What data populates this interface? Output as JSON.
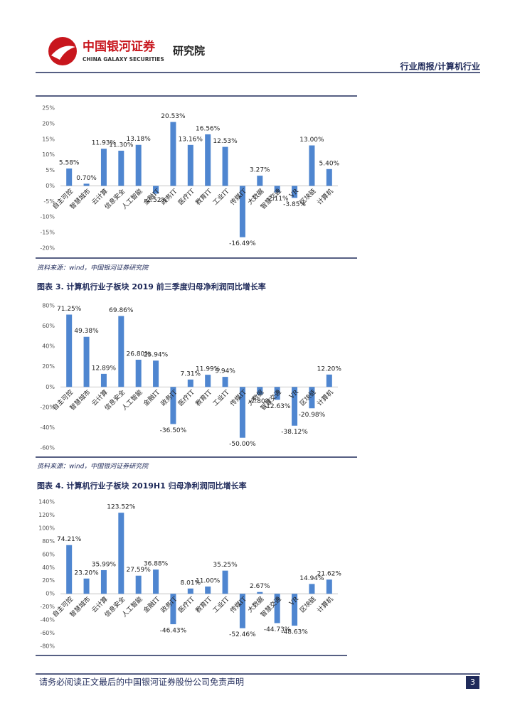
{
  "header": {
    "company": "中国银河证券",
    "company_en": "CHINA GALAXY SECURITIES",
    "institute": "研究院",
    "section": "行业周报/计算机行业"
  },
  "chart_data": [
    {
      "type": "bar",
      "categories": [
        "自主可控",
        "智慧城市",
        "云计算",
        "信息安全",
        "人工智能",
        "金融IT",
        "政务IT",
        "医疗IT",
        "教育IT",
        "工业IT",
        "传媒IT",
        "大数据",
        "智慧交通",
        "VR",
        "区块链",
        "计算机"
      ],
      "values": [
        5.58,
        0.7,
        11.93,
        11.3,
        13.18,
        -2.52,
        20.53,
        13.16,
        16.56,
        12.53,
        -16.49,
        3.27,
        -2.11,
        -3.85,
        13.0,
        5.4
      ],
      "value_labels": [
        "5.58%",
        "0.70%",
        "11.93%",
        "11.30%",
        "13.18%",
        "-2.52%",
        "20.53%",
        "13.16%",
        "16.56%",
        "12.53%",
        "-16.49%",
        "3.27%",
        "-2.11%",
        "-3.85%",
        "13.00%",
        "5.40%"
      ],
      "color": "#4f86d0",
      "ylim": [
        -20,
        25
      ],
      "yticks": [
        {
          "value": -20,
          "label": "-20%"
        },
        {
          "value": -15,
          "label": "-15%"
        },
        {
          "value": -10,
          "label": "-10%"
        },
        {
          "value": -5,
          "label": "-5%"
        },
        {
          "value": 0,
          "label": "0%"
        },
        {
          "value": 5,
          "label": "5%"
        },
        {
          "value": 10,
          "label": "10%"
        },
        {
          "value": 15,
          "label": "15%"
        },
        {
          "value": 20,
          "label": "20%"
        },
        {
          "value": 25,
          "label": "25%"
        }
      ],
      "source": "资料来源：wind，中国银河证券研究院"
    },
    {
      "type": "bar",
      "title": "图表 3. 计算机行业子板块 2019 前三季度归母净利润同比增长率",
      "categories": [
        "自主可控",
        "智慧城市",
        "云计算",
        "信息安全",
        "人工智能",
        "金融IT",
        "政务IT",
        "医疗IT",
        "教育IT",
        "工业IT",
        "传媒IT",
        "大数据",
        "智慧交通",
        "VR",
        "区块链",
        "计算机"
      ],
      "values": [
        71.25,
        49.38,
        12.89,
        69.86,
        26.8,
        25.94,
        -36.5,
        7.31,
        11.99,
        9.94,
        -50.0,
        -7.8,
        -12.63,
        -38.12,
        -20.98,
        12.2
      ],
      "value_labels": [
        "71.25%",
        "49.38%",
        "12.89%",
        "69.86%",
        "26.80%",
        "25.94%",
        "-36.50%",
        "7.31%",
        "11.99%",
        "9.94%",
        "-50.00%",
        "-7.80%",
        "-12.63%",
        "-38.12%",
        "-20.98%",
        "12.20%"
      ],
      "color": "#4f86d0",
      "ylim": [
        -60,
        80
      ],
      "yticks": [
        {
          "value": -60,
          "label": "-60%"
        },
        {
          "value": -40,
          "label": "-40%"
        },
        {
          "value": -20,
          "label": "-20%"
        },
        {
          "value": 0,
          "label": "0%"
        },
        {
          "value": 20,
          "label": "20%"
        },
        {
          "value": 40,
          "label": "40%"
        },
        {
          "value": 60,
          "label": "60%"
        },
        {
          "value": 80,
          "label": "80%"
        }
      ],
      "source": "资料来源：wind，中国银河证券研究院"
    },
    {
      "type": "bar",
      "title": "图表 4. 计算机行业子板块 2019H1 归母净利润同比增长率",
      "categories": [
        "自主可控",
        "智慧城市",
        "云计算",
        "信息安全",
        "人工智能",
        "金融IT",
        "政务IT",
        "医疗IT",
        "教育IT",
        "工业IT",
        "传媒IT",
        "大数据",
        "智慧交通",
        "VR",
        "区块链",
        "计算机"
      ],
      "values": [
        74.21,
        23.2,
        35.99,
        123.52,
        27.59,
        36.88,
        -46.43,
        8.01,
        11.0,
        35.25,
        -52.46,
        2.67,
        -44.73,
        -48.63,
        14.94,
        21.62
      ],
      "value_labels": [
        "74.21%",
        "23.20%",
        "35.99%",
        "123.52%",
        "27.59%",
        "36.88%",
        "-46.43%",
        "8.01%",
        "11.00%",
        "35.25%",
        "-52.46%",
        "2.67%",
        "-44.73%",
        "-48.63%",
        "14.94%",
        "21.62%"
      ],
      "color": "#4f86d0",
      "ylim": [
        -80,
        140
      ],
      "yticks": [
        {
          "value": -80,
          "label": "-80%"
        },
        {
          "value": -60,
          "label": "-60%"
        },
        {
          "value": -40,
          "label": "-40%"
        },
        {
          "value": -20,
          "label": "-20%"
        },
        {
          "value": 0,
          "label": "0%"
        },
        {
          "value": 20,
          "label": "20%"
        },
        {
          "value": 40,
          "label": "40%"
        },
        {
          "value": 60,
          "label": "60%"
        },
        {
          "value": 80,
          "label": "80%"
        },
        {
          "value": 100,
          "label": "100%"
        },
        {
          "value": 120,
          "label": "120%"
        },
        {
          "value": 140,
          "label": "140%"
        }
      ]
    }
  ],
  "footer": {
    "disclaimer": "请务必阅读正文最后的中国银河证券股份公司免责声明",
    "page": 3
  }
}
